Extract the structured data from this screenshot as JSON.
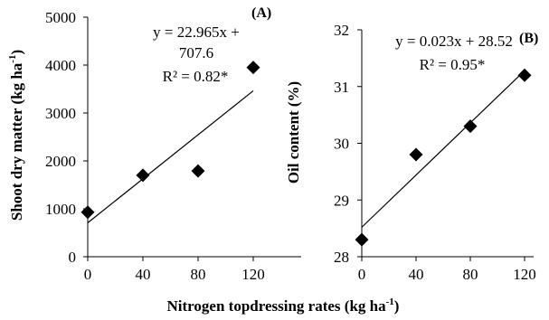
{
  "chart_data": [
    {
      "type": "scatter",
      "panel_label": "(A)",
      "ylabel": {
        "main": "Shoot dry matter (kg ha",
        "sup": "-1",
        "end": ")"
      },
      "x": [
        0,
        40,
        80,
        120
      ],
      "y": [
        930,
        1700,
        1790,
        3950
      ],
      "xticks": [
        0,
        40,
        80,
        120
      ],
      "xlim": [
        0,
        120
      ],
      "ylim": [
        0,
        5000
      ],
      "yticks": [
        0,
        1000,
        2000,
        3000,
        4000,
        5000
      ],
      "marker": "diamond",
      "trendline": {
        "slope": 22.965,
        "intercept": 707.6
      },
      "equation_lines": [
        "y = 22.965x +",
        "707.6"
      ],
      "r2_text": "R² = 0.82*",
      "grid": false
    },
    {
      "type": "scatter",
      "panel_label": "(B)",
      "ylabel": {
        "main": "Oil content (%)"
      },
      "x": [
        0,
        40,
        80,
        120
      ],
      "y": [
        28.3,
        29.8,
        30.3,
        31.2
      ],
      "xticks": [
        0,
        40,
        80,
        120
      ],
      "xlim": [
        0,
        120
      ],
      "ylim": [
        28,
        32
      ],
      "yticks": [
        28,
        29,
        30,
        31,
        32
      ],
      "marker": "diamond",
      "trendline": {
        "slope": 0.023,
        "intercept": 28.52
      },
      "equation_lines": [
        "y = 0.023x + 28.52"
      ],
      "r2_text": "R² = 0.95*",
      "grid": false
    }
  ],
  "shared_xlabel": {
    "main": "Nitrogen topdressing rates (kg ha",
    "sup": "-1",
    "end": ")"
  },
  "colors": {
    "marker": "#000000",
    "axis": "#000000",
    "line": "#000000"
  }
}
